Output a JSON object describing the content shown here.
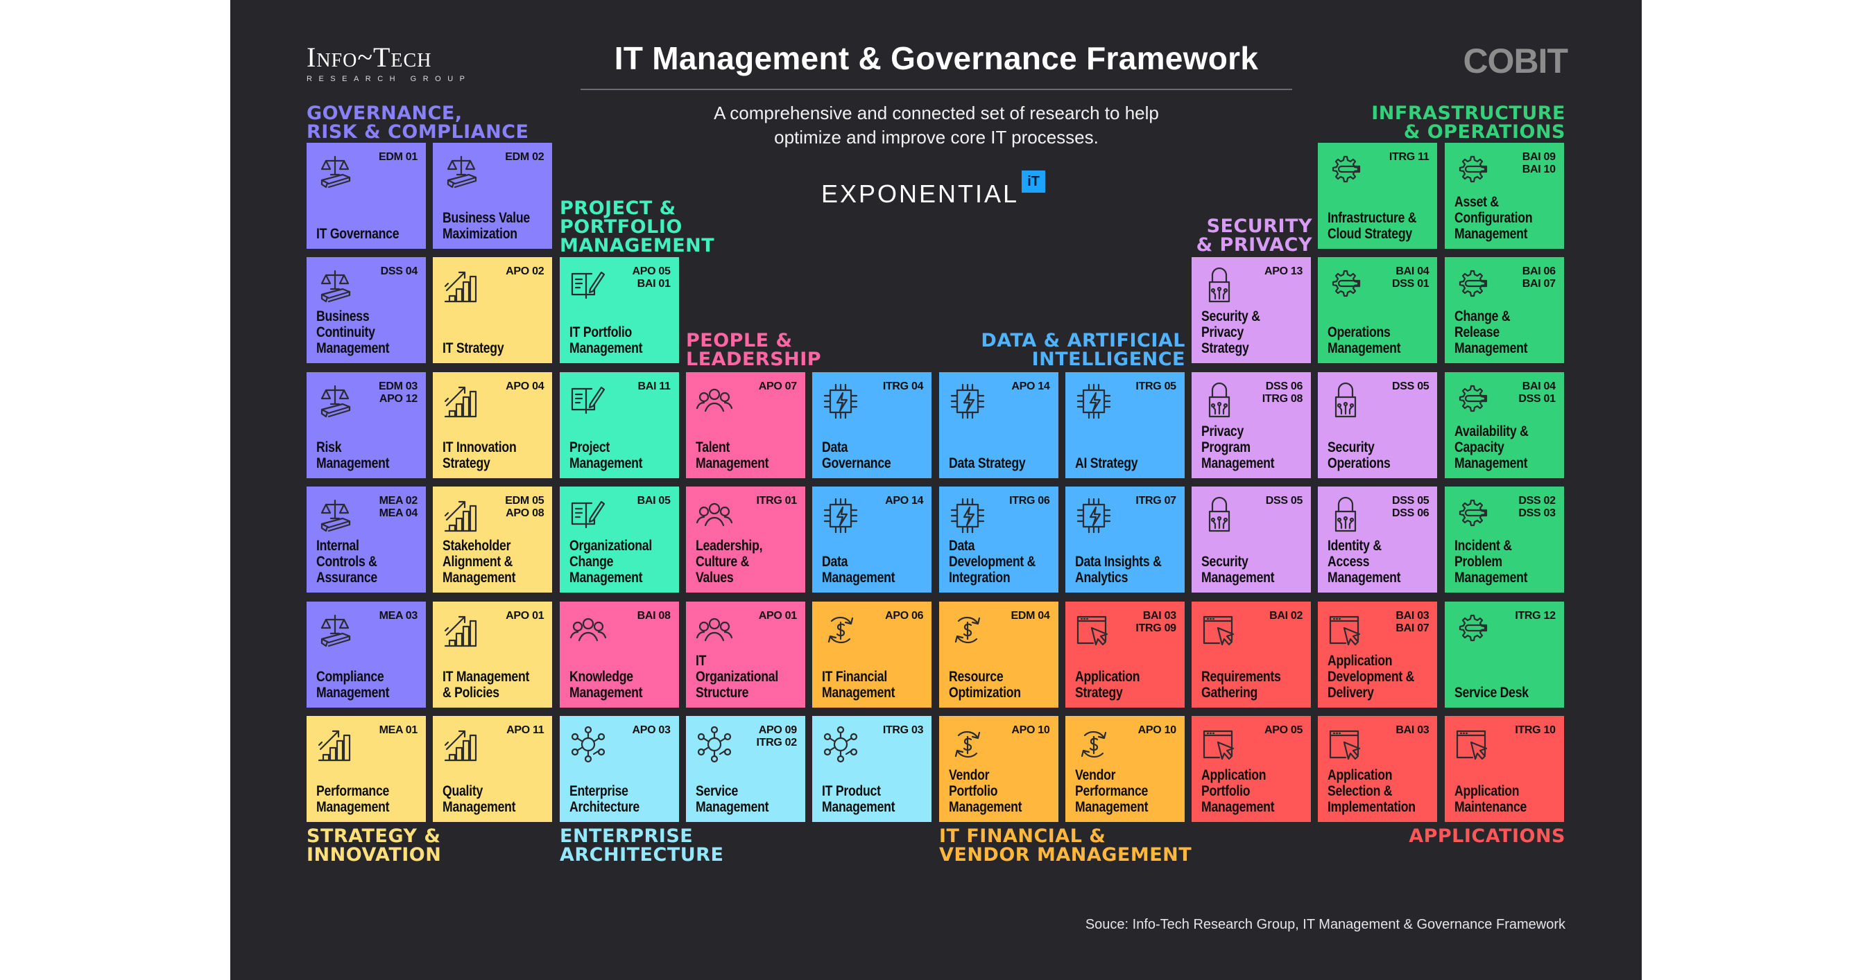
{
  "header": {
    "logo_main": "Info~Tech",
    "logo_sub": "RESEARCH GROUP",
    "title": "IT Management & Governance Framework",
    "subtitle": "A comprehensive and connected set of research to help\noptimize and improve core IT processes.",
    "exponential": "EXPONENTIAL",
    "exponential_badge": "iT",
    "cobit": "COBIT"
  },
  "source": "Souce: Info-Tech Research Group, IT Management & Governance Framework",
  "colors": {
    "background": "#26262b",
    "governance": "#8880fc",
    "strategy": "#fde07a",
    "project": "#41f0bd",
    "people": "#ff66a3",
    "data": "#4fb3ff",
    "enterprise": "#93e9fb",
    "financial": "#ffb83d",
    "applications": "#ff5757",
    "security": "#d89cf5",
    "infrastructure": "#33d17a"
  },
  "categories": [
    {
      "id": "governance",
      "label": "GOVERNANCE,\nRISK & COMPLIANCE",
      "color": "#8880fc"
    },
    {
      "id": "project",
      "label": "PROJECT &\nPORTFOLIO\nMANAGEMENT",
      "color": "#41f0bd"
    },
    {
      "id": "people",
      "label": "PEOPLE &\nLEADERSHIP",
      "color": "#ff66a3"
    },
    {
      "id": "data",
      "label": "DATA & ARTIFICIAL\nINTELLIGENCE",
      "color": "#4fb3ff"
    },
    {
      "id": "security",
      "label": "SECURITY\n& PRIVACY",
      "color": "#d89cf5"
    },
    {
      "id": "infrastructure",
      "label": "INFRASTRUCTURE\n& OPERATIONS",
      "color": "#33d17a"
    },
    {
      "id": "strategy",
      "label": "STRATEGY &\nINNOVATION",
      "color": "#fde07a"
    },
    {
      "id": "enterprise",
      "label": "ENTERPRISE\nARCHITECTURE",
      "color": "#93e9fb"
    },
    {
      "id": "financial",
      "label": "IT FINANCIAL &\nVENDOR MANAGEMENT",
      "color": "#ffb83d"
    },
    {
      "id": "applications",
      "label": "APPLICATIONS",
      "color": "#ff5757"
    }
  ],
  "tiles": [
    {
      "col": 0,
      "row": 0,
      "cat": "governance",
      "icon": "scale-icon",
      "code": "EDM 01",
      "name": "IT Governance"
    },
    {
      "col": 1,
      "row": 0,
      "cat": "governance",
      "icon": "scale-icon",
      "code": "EDM 02",
      "name": "Business Value\nMaximization"
    },
    {
      "col": 8,
      "row": 0,
      "cat": "infrastructure",
      "icon": "gear-wrench-icon",
      "code": "ITRG 11",
      "name": "Infrastructure &\nCloud Strategy"
    },
    {
      "col": 9,
      "row": 0,
      "cat": "infrastructure",
      "icon": "gear-wrench-icon",
      "code": "BAI 09\nBAI 10",
      "name": "Asset &\nConfiguration\nManagement"
    },
    {
      "col": 0,
      "row": 1,
      "cat": "governance",
      "icon": "scale-icon",
      "code": "DSS 04",
      "name": "Business\nContinuity\nManagement"
    },
    {
      "col": 1,
      "row": 1,
      "cat": "strategy",
      "icon": "growth-chart-icon",
      "code": "APO 02",
      "name": "IT Strategy"
    },
    {
      "col": 2,
      "row": 1,
      "cat": "project",
      "icon": "book-pen-icon",
      "code": "APO 05\nBAI 01",
      "name": "IT Portfolio\nManagement"
    },
    {
      "col": 7,
      "row": 1,
      "cat": "security",
      "icon": "lock-icon",
      "code": "APO 13",
      "name": "Security &\nPrivacy\nStrategy"
    },
    {
      "col": 8,
      "row": 1,
      "cat": "infrastructure",
      "icon": "gear-wrench-icon",
      "code": "BAI 04\nDSS 01",
      "name": "Operations\nManagement"
    },
    {
      "col": 9,
      "row": 1,
      "cat": "infrastructure",
      "icon": "gear-wrench-icon",
      "code": "BAI 06\nBAI 07",
      "name": "Change &\nRelease\nManagement"
    },
    {
      "col": 0,
      "row": 2,
      "cat": "governance",
      "icon": "scale-icon",
      "code": "EDM 03\nAPO 12",
      "name": "Risk\nManagement"
    },
    {
      "col": 1,
      "row": 2,
      "cat": "strategy",
      "icon": "growth-chart-icon",
      "code": "APO 04",
      "name": "IT Innovation\nStrategy"
    },
    {
      "col": 2,
      "row": 2,
      "cat": "project",
      "icon": "book-pen-icon",
      "code": "BAI 11",
      "name": "Project\nManagement"
    },
    {
      "col": 3,
      "row": 2,
      "cat": "people",
      "icon": "people-icon",
      "code": "APO 07",
      "name": "Talent\nManagement"
    },
    {
      "col": 4,
      "row": 2,
      "cat": "data",
      "icon": "chip-icon",
      "code": "ITRG 04",
      "name": "Data\nGovernance"
    },
    {
      "col": 5,
      "row": 2,
      "cat": "data",
      "icon": "chip-icon",
      "code": "APO 14",
      "name": "Data Strategy"
    },
    {
      "col": 6,
      "row": 2,
      "cat": "data",
      "icon": "chip-icon",
      "code": "ITRG 05",
      "name": "AI Strategy"
    },
    {
      "col": 7,
      "row": 2,
      "cat": "security",
      "icon": "lock-icon",
      "code": "DSS 06\nITRG 08",
      "name": "Privacy\nProgram\nManagement"
    },
    {
      "col": 8,
      "row": 2,
      "cat": "security",
      "icon": "lock-icon",
      "code": "DSS 05",
      "name": "Security\nOperations"
    },
    {
      "col": 9,
      "row": 2,
      "cat": "infrastructure",
      "icon": "gear-wrench-icon",
      "code": "BAI 04\nDSS 01",
      "name": "Availability &\nCapacity\nManagement"
    },
    {
      "col": 0,
      "row": 3,
      "cat": "governance",
      "icon": "scale-icon",
      "code": "MEA 02\nMEA 04",
      "name": "Internal\nControls &\nAssurance"
    },
    {
      "col": 1,
      "row": 3,
      "cat": "strategy",
      "icon": "growth-chart-icon",
      "code": "EDM 05\nAPO 08",
      "name": "Stakeholder\nAlignment &\nManagement"
    },
    {
      "col": 2,
      "row": 3,
      "cat": "project",
      "icon": "book-pen-icon",
      "code": "BAI 05",
      "name": "Organizational\nChange\nManagement"
    },
    {
      "col": 3,
      "row": 3,
      "cat": "people",
      "icon": "people-icon",
      "code": "ITRG 01",
      "name": "Leadership,\nCulture &\nValues"
    },
    {
      "col": 4,
      "row": 3,
      "cat": "data",
      "icon": "chip-icon",
      "code": "APO 14",
      "name": "Data\nManagement"
    },
    {
      "col": 5,
      "row": 3,
      "cat": "data",
      "icon": "chip-icon",
      "code": "ITRG 06",
      "name": "Data\nDevelopment &\nIntegration"
    },
    {
      "col": 6,
      "row": 3,
      "cat": "data",
      "icon": "chip-icon",
      "code": "ITRG 07",
      "name": "Data Insights &\nAnalytics"
    },
    {
      "col": 7,
      "row": 3,
      "cat": "security",
      "icon": "lock-icon",
      "code": "DSS 05",
      "name": "Security\nManagement"
    },
    {
      "col": 8,
      "row": 3,
      "cat": "security",
      "icon": "lock-icon",
      "code": "DSS 05\nDSS 06",
      "name": "Identity &\nAccess\nManagement"
    },
    {
      "col": 9,
      "row": 3,
      "cat": "infrastructure",
      "icon": "gear-wrench-icon",
      "code": "DSS 02\nDSS 03",
      "name": "Incident &\nProblem\nManagement"
    },
    {
      "col": 0,
      "row": 4,
      "cat": "governance",
      "icon": "scale-icon",
      "code": "MEA 03",
      "name": "Compliance\nManagement"
    },
    {
      "col": 1,
      "row": 4,
      "cat": "strategy",
      "icon": "growth-chart-icon",
      "code": "APO 01",
      "name": "IT Management\n& Policies"
    },
    {
      "col": 2,
      "row": 4,
      "cat": "people",
      "icon": "people-icon",
      "code": "BAI 08",
      "name": "Knowledge\nManagement"
    },
    {
      "col": 3,
      "row": 4,
      "cat": "people",
      "icon": "people-icon",
      "code": "APO 01",
      "name": "IT\nOrganizational\nStructure"
    },
    {
      "col": 4,
      "row": 4,
      "cat": "financial",
      "icon": "dollar-cycle-icon",
      "code": "APO 06",
      "name": "IT Financial\nManagement"
    },
    {
      "col": 5,
      "row": 4,
      "cat": "financial",
      "icon": "dollar-cycle-icon",
      "code": "EDM 04",
      "name": "Resource\nOptimization"
    },
    {
      "col": 6,
      "row": 4,
      "cat": "applications",
      "icon": "window-cursor-icon",
      "code": "BAI 03\nITRG 09",
      "name": "Application\nStrategy"
    },
    {
      "col": 7,
      "row": 4,
      "cat": "applications",
      "icon": "window-cursor-icon",
      "code": "BAI 02",
      "name": "Requirements\nGathering"
    },
    {
      "col": 8,
      "row": 4,
      "cat": "applications",
      "icon": "window-cursor-icon",
      "code": "BAI 03\nBAI 07",
      "name": "Application\nDevelopment &\nDelivery"
    },
    {
      "col": 9,
      "row": 4,
      "cat": "infrastructure",
      "icon": "gear-wrench-icon",
      "code": "ITRG 12",
      "name": "Service Desk"
    },
    {
      "col": 0,
      "row": 5,
      "cat": "strategy",
      "icon": "growth-chart-icon",
      "code": "MEA 01",
      "name": "Performance\nManagement"
    },
    {
      "col": 1,
      "row": 5,
      "cat": "strategy",
      "icon": "growth-chart-icon",
      "code": "APO 11",
      "name": "Quality\nManagement"
    },
    {
      "col": 2,
      "row": 5,
      "cat": "enterprise",
      "icon": "network-icon",
      "code": "APO 03",
      "name": "Enterprise\nArchitecture"
    },
    {
      "col": 3,
      "row": 5,
      "cat": "enterprise",
      "icon": "network-icon",
      "code": "APO 09\nITRG 02",
      "name": "Service\nManagement"
    },
    {
      "col": 4,
      "row": 5,
      "cat": "enterprise",
      "icon": "network-icon",
      "code": "ITRG 03",
      "name": "IT Product\nManagement"
    },
    {
      "col": 5,
      "row": 5,
      "cat": "financial",
      "icon": "dollar-cycle-icon",
      "code": "APO 10",
      "name": "Vendor\nPortfolio\nManagement"
    },
    {
      "col": 6,
      "row": 5,
      "cat": "financial",
      "icon": "dollar-cycle-icon",
      "code": "APO 10",
      "name": "Vendor\nPerformance\nManagement"
    },
    {
      "col": 7,
      "row": 5,
      "cat": "applications",
      "icon": "window-cursor-icon",
      "code": "APO 05",
      "name": "Application\nPortfolio\nManagement"
    },
    {
      "col": 8,
      "row": 5,
      "cat": "applications",
      "icon": "window-cursor-icon",
      "code": "BAI 03",
      "name": "Application\nSelection &\nImplementation"
    },
    {
      "col": 9,
      "row": 5,
      "cat": "applications",
      "icon": "window-cursor-icon",
      "code": "ITRG 10",
      "name": "Application\nMaintenance"
    }
  ]
}
